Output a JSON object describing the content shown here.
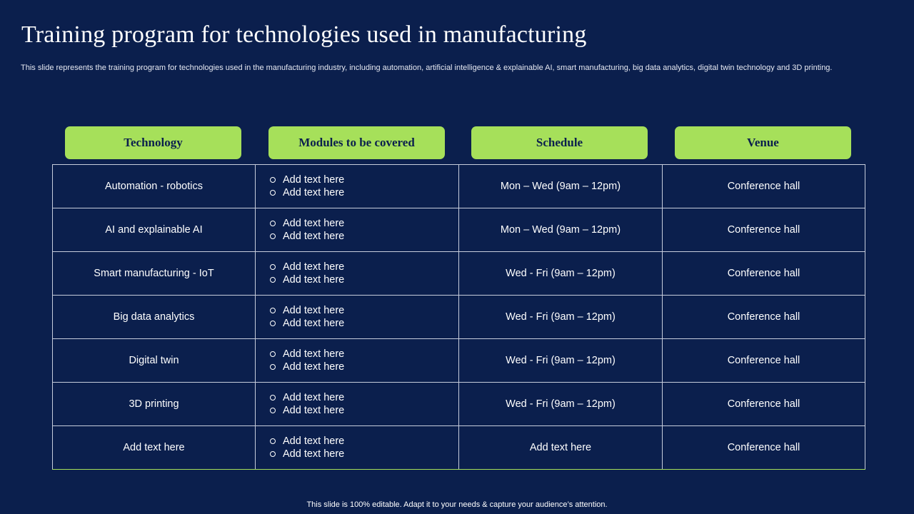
{
  "slide": {
    "title": "Training program for technologies used in manufacturing",
    "subtitle": "This slide represents the training program for technologies used in the manufacturing industry, including automation, artificial intelligence & explainable AI, smart manufacturing, big data analytics, digital twin technology and 3D printing.",
    "footer": "This slide is 100% editable. Adapt it to your needs & capture your audience’s attention."
  },
  "table": {
    "headers": [
      "Technology",
      "Modules to be covered",
      "Schedule",
      "Venue"
    ],
    "rows": [
      {
        "technology": "Automation - robotics",
        "modules": [
          "Add text here",
          "Add text here"
        ],
        "schedule": "Mon – Wed (9am – 12pm)",
        "venue": "Conference hall"
      },
      {
        "technology": "AI and explainable AI",
        "modules": [
          "Add text here",
          "Add text here"
        ],
        "schedule": "Mon – Wed (9am – 12pm)",
        "venue": "Conference hall"
      },
      {
        "technology": "Smart manufacturing - IoT",
        "modules": [
          "Add text here",
          "Add text here"
        ],
        "schedule": "Wed - Fri (9am – 12pm)",
        "venue": "Conference hall"
      },
      {
        "technology": "Big data analytics",
        "modules": [
          "Add text here",
          "Add text here"
        ],
        "schedule": "Wed - Fri (9am – 12pm)",
        "venue": "Conference hall"
      },
      {
        "technology": "Digital twin",
        "modules": [
          "Add text here",
          "Add text here"
        ],
        "schedule": "Wed - Fri (9am – 12pm)",
        "venue": "Conference hall"
      },
      {
        "technology": "3D printing",
        "modules": [
          "Add text here",
          "Add text here"
        ],
        "schedule": "Wed - Fri (9am – 12pm)",
        "venue": "Conference hall"
      },
      {
        "technology": "Add text here",
        "modules": [
          "Add text here",
          "Add text here"
        ],
        "schedule": "Add text here",
        "venue": "Conference hall"
      }
    ]
  },
  "colors": {
    "background": "#0b1f4d",
    "accent": "#a6e05a",
    "grid_line": "#c7cddc"
  }
}
